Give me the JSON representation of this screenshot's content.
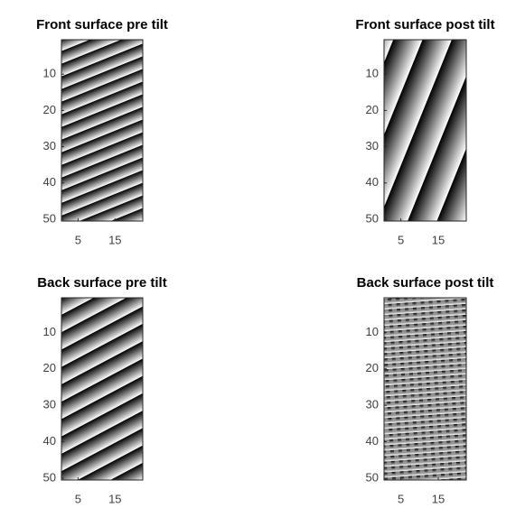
{
  "chart_data": [
    {
      "type": "image",
      "title": "Front surface pre tilt",
      "xlim": [
        0.5,
        22.5
      ],
      "ylim": [
        0.5,
        50.5
      ],
      "xticks": [
        5,
        15
      ],
      "yticks": [
        10,
        20,
        30,
        40,
        50
      ]
    },
    {
      "type": "image",
      "title": "Front surface post tilt",
      "xlim": [
        0.5,
        22.5
      ],
      "ylim": [
        0.5,
        50.5
      ],
      "xticks": [
        5,
        15
      ],
      "yticks": [
        10,
        20,
        30,
        40,
        50
      ]
    },
    {
      "type": "image",
      "title": "Back surface pre tilt",
      "xlim": [
        0.5,
        22.5
      ],
      "ylim": [
        0.5,
        50.5
      ],
      "xticks": [
        5,
        15
      ],
      "yticks": [
        10,
        20,
        30,
        40,
        50
      ]
    },
    {
      "type": "image",
      "title": "Back surface post tilt",
      "xlim": [
        0.5,
        22.5
      ],
      "ylim": [
        0.5,
        50.5
      ],
      "xticks": [
        5,
        15
      ],
      "yticks": [
        10,
        20,
        30,
        40,
        50
      ]
    }
  ]
}
